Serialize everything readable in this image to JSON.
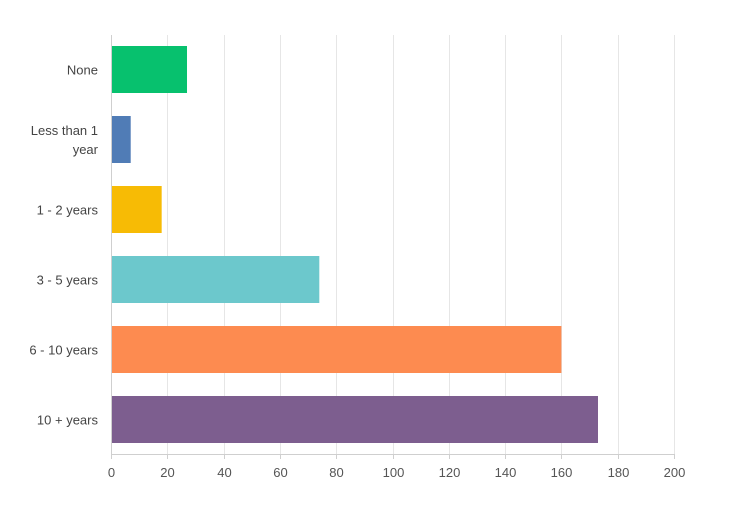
{
  "chart_data": {
    "type": "bar",
    "orientation": "horizontal",
    "categories": [
      [
        "None"
      ],
      [
        "Less than 1",
        "year"
      ],
      [
        "1 - 2 years"
      ],
      [
        "3 - 5 years"
      ],
      [
        "6 - 10 years"
      ],
      [
        "10 + years"
      ]
    ],
    "values": [
      27,
      7,
      18,
      74,
      160,
      173
    ],
    "colors": [
      "#07c16e",
      "#507cb6",
      "#f7bb05",
      "#6cc8cc",
      "#fd8b50",
      "#7d5e8f"
    ],
    "xlim": [
      0,
      200
    ],
    "xticks": [
      "0",
      "20",
      "40",
      "60",
      "80",
      "100",
      "120",
      "140",
      "160",
      "180",
      "200"
    ],
    "grid": "vertical",
    "gridline_color": "#e6e6e6",
    "axis_color": "#cfcfcf",
    "title": "",
    "xlabel": "",
    "ylabel": ""
  }
}
